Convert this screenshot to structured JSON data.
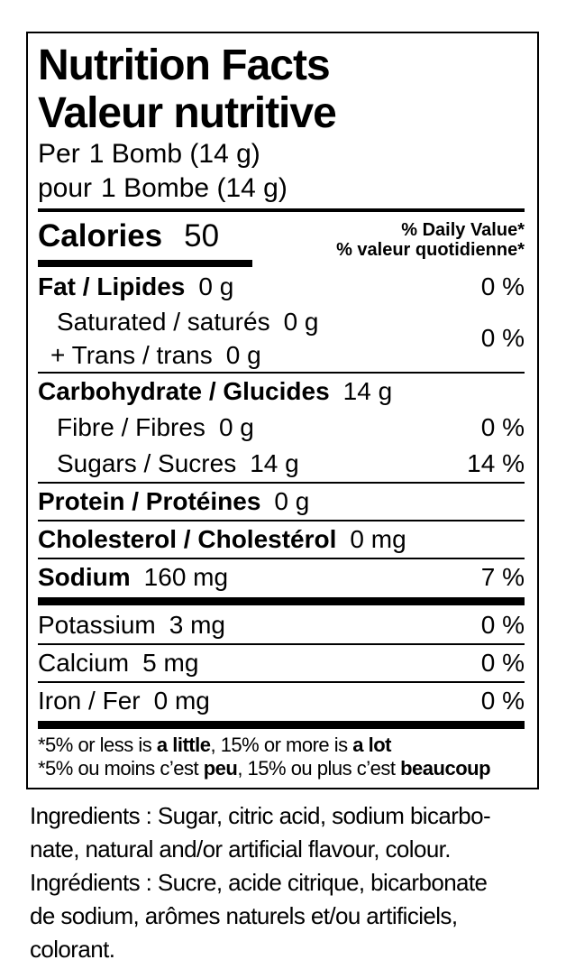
{
  "colors": {
    "text": "#000000",
    "background": "#ffffff",
    "rule": "#000000"
  },
  "header": {
    "title_en": "Nutrition Facts",
    "title_fr": "Valeur nutritive",
    "serving_en": {
      "prefix": "Per",
      "amount": "1 Bomb (14 g)"
    },
    "serving_fr": {
      "prefix": "pour",
      "amount": "1 Bombe (14 g)"
    }
  },
  "calories": {
    "label": "Calories",
    "value": "50",
    "dv_line_en": "% Daily Value*",
    "dv_line_fr": "% valeur quotidienne*"
  },
  "rows": {
    "fat": {
      "label": "Fat / Lipides",
      "value": "0 g",
      "pct": "0 %"
    },
    "saturated": {
      "label": "Saturated / saturés",
      "value": "0 g",
      "pct": "0 %"
    },
    "trans": {
      "label": "+ Trans / trans",
      "value": "0 g"
    },
    "carbohydrate": {
      "label": "Carbohydrate / Glucides",
      "value": "14 g"
    },
    "fibre": {
      "label": "Fibre / Fibres",
      "value": "0 g",
      "pct": "0 %"
    },
    "sugars": {
      "label": "Sugars / Sucres",
      "value": "14 g",
      "pct": "14 %"
    },
    "protein": {
      "label": "Protein / Protéines",
      "value": "0 g"
    },
    "cholesterol": {
      "label": "Cholesterol / Cholestérol",
      "value": "0 mg"
    },
    "sodium": {
      "label": "Sodium",
      "value": "160 mg",
      "pct": "7 %"
    },
    "potassium": {
      "label": "Potassium",
      "value": "3 mg",
      "pct": "0 %"
    },
    "calcium": {
      "label": "Calcium",
      "value": "5 mg",
      "pct": "0 %"
    },
    "iron": {
      "label": "Iron / Fer",
      "value": "0 mg",
      "pct": "0 %"
    }
  },
  "footnotes": {
    "en": {
      "pre": "*5% or less is ",
      "bold1": "a little",
      "mid": ", 15% or more is ",
      "bold2": "a lot"
    },
    "fr": {
      "pre": "*5% ou moins c’est ",
      "bold1": "peu",
      "mid": ", 15% ou plus c’est ",
      "bold2": "beaucoup"
    }
  },
  "ingredients": {
    "lines": [
      "Ingredients : Sugar, citric acid, sodium bicarbo-",
      "nate, natural and/or artificial flavour, colour.",
      "Ingrédients : Sucre, acide citrique, bicarbonate",
      "de sodium, arômes naturels et/ou artificiels,",
      "colorant."
    ]
  }
}
